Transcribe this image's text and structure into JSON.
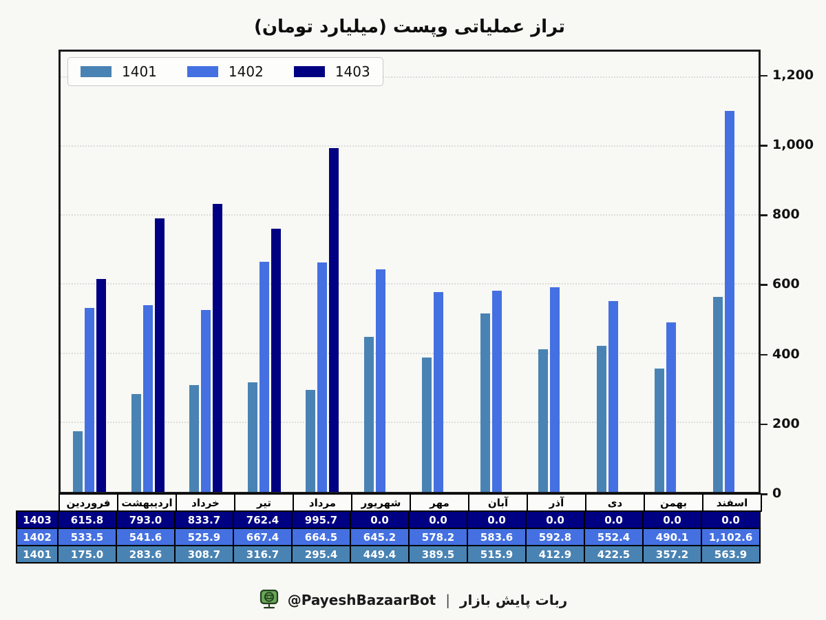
{
  "page": {
    "background": "#f8f8f5"
  },
  "chart_data": {
    "type": "bar",
    "title": "تراز عملیاتی وپست (میلیارد تومان)",
    "categories": [
      "فروردین",
      "اردیبهشت",
      "خرداد",
      "تیر",
      "مرداد",
      "شهریور",
      "مهر",
      "آبان",
      "آذر",
      "دی",
      "بهمن",
      "اسفند"
    ],
    "series": [
      {
        "name": "1401",
        "color": "#4983b3",
        "values": [
          175.0,
          283.6,
          308.7,
          316.7,
          295.4,
          449.4,
          389.5,
          515.9,
          412.9,
          422.5,
          357.2,
          563.9
        ]
      },
      {
        "name": "1402",
        "color": "#4470e1",
        "values": [
          533.5,
          541.6,
          525.9,
          667.4,
          664.5,
          645.2,
          578.2,
          583.6,
          592.8,
          552.4,
          490.1,
          1102.6
        ]
      },
      {
        "name": "1403",
        "color": "#000082",
        "values": [
          615.8,
          793.0,
          833.7,
          762.4,
          995.7,
          0.0,
          0.0,
          0.0,
          0.0,
          0.0,
          0.0,
          0.0
        ]
      }
    ],
    "y_ticks": [
      0,
      200,
      400,
      600,
      800,
      1000,
      1200
    ],
    "ylim": [
      0,
      1275
    ],
    "grid": "horizontal-dotted",
    "legend_position": "top-left",
    "table_rows_order": [
      "1403",
      "1402",
      "1401"
    ]
  },
  "footer": {
    "handle": "@PayeshBazaarBot",
    "separator": "|",
    "title_fa": "ربات پایش بازار",
    "icon": "robot-monitor-icon",
    "icon_color": "#68a757"
  }
}
